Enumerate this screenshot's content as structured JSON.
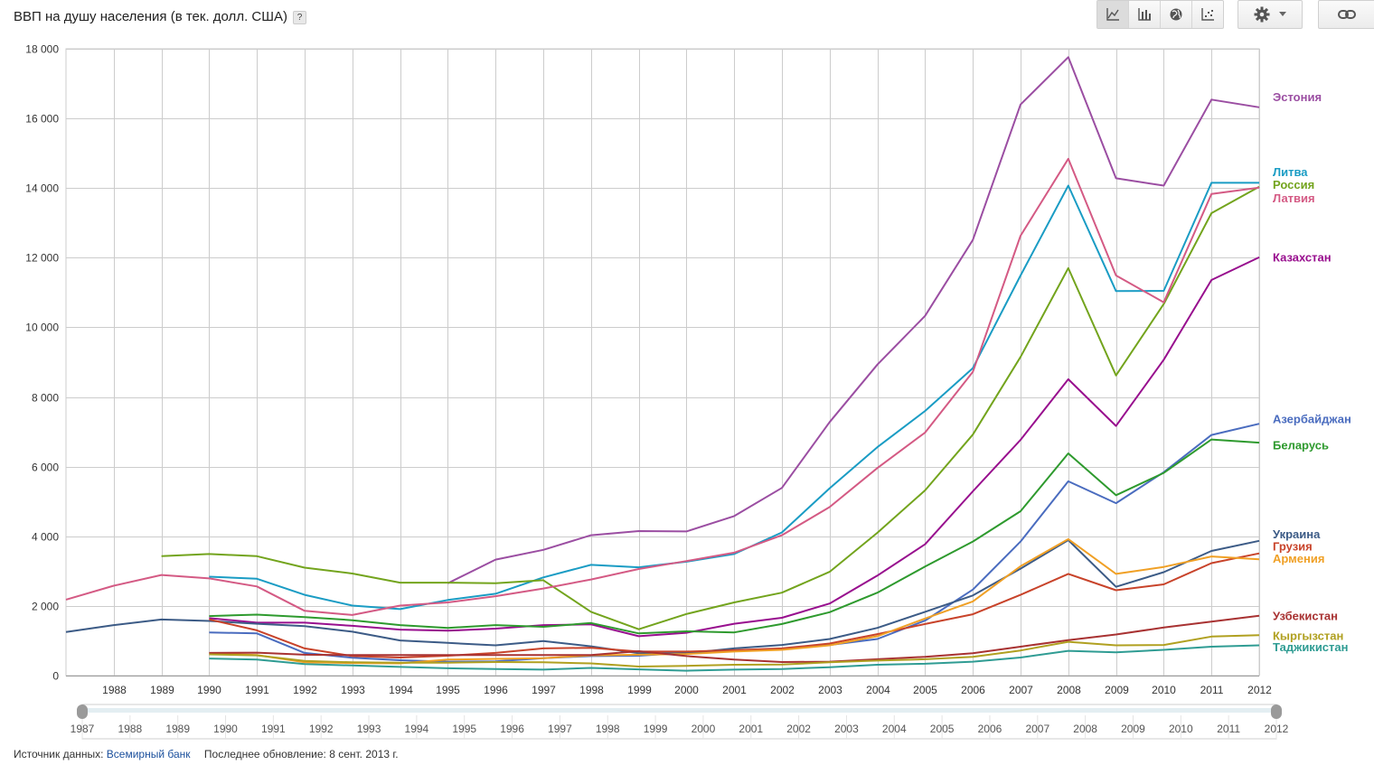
{
  "title": "ВВП на душу населения (в тек. долл. США)",
  "help_label": "?",
  "toolbar": {
    "chart_types": [
      {
        "icon": "line-chart-icon",
        "active": true
      },
      {
        "icon": "bar-chart-icon",
        "active": false
      },
      {
        "icon": "globe-map-icon",
        "active": false
      },
      {
        "icon": "scatter-chart-icon",
        "active": false
      }
    ],
    "settings_icon": "gear-icon",
    "dropdown_icon": "chevron-down-icon",
    "link_icon": "link-icon"
  },
  "footer": {
    "source_label": "Источник данных:",
    "source_link": "Всемирный банк",
    "updated": "Последнее обновление: 8 сент. 2013 г."
  },
  "chart_data": {
    "type": "line",
    "title": "",
    "xlabel": "",
    "ylabel": "",
    "xlim": [
      1987,
      2012
    ],
    "ylim": [
      0,
      18000
    ],
    "yticks": [
      0,
      2000,
      4000,
      6000,
      8000,
      10000,
      12000,
      14000,
      16000,
      18000
    ],
    "ytick_labels": [
      "0",
      "2 000",
      "4 000",
      "6 000",
      "8 000",
      "10 000",
      "12 000",
      "14 000",
      "16 000",
      "18 000"
    ],
    "xticks": [
      1988,
      1989,
      1990,
      1991,
      1992,
      1993,
      1994,
      1995,
      1996,
      1997,
      1998,
      1999,
      2000,
      2001,
      2002,
      2003,
      2004,
      2005,
      2006,
      2007,
      2008,
      2009,
      2010,
      2011,
      2012
    ],
    "range_slider": {
      "from": 1987,
      "to": 2012,
      "labels": [
        1987,
        1988,
        1989,
        1990,
        1991,
        1992,
        1993,
        1994,
        1995,
        1996,
        1997,
        1998,
        1999,
        2000,
        2001,
        2002,
        2003,
        2004,
        2005,
        2006,
        2007,
        2008,
        2009,
        2010,
        2011,
        2012
      ]
    },
    "grid": true,
    "legend": "right",
    "series": [
      {
        "name": "Эстония",
        "color": "#9b4ea2",
        "label_y": 16600,
        "start": 1995,
        "values": [
          2650,
          3330,
          3610,
          4030,
          4150,
          4140,
          4580,
          5390,
          7280,
          8930,
          10330,
          12510,
          16400,
          17760,
          14280,
          14070,
          16540,
          16320
        ]
      },
      {
        "name": "Литва",
        "color": "#1a9cc4",
        "label_y": 14450,
        "start": 1990,
        "values": [
          2840,
          2780,
          2320,
          2010,
          1910,
          2170,
          2350,
          2820,
          3180,
          3110,
          3270,
          3490,
          4110,
          5380,
          6560,
          7600,
          8830,
          11490,
          14070,
          11040,
          11050,
          14150,
          14150
        ]
      },
      {
        "name": "Россия",
        "color": "#73a41d",
        "label_y": 14080,
        "start": 1989,
        "values": [
          3430,
          3490,
          3430,
          3100,
          2930,
          2670,
          2670,
          2650,
          2740,
          1830,
          1330,
          1770,
          2100,
          2380,
          2980,
          4100,
          5320,
          6920,
          9150,
          11700,
          8620,
          10670,
          13280,
          14040
        ]
      },
      {
        "name": "Латвия",
        "color": "#d45a84",
        "label_y": 13700,
        "start": 1987,
        "values": [
          2180,
          2580,
          2890,
          2790,
          2560,
          1860,
          1740,
          2010,
          2100,
          2280,
          2500,
          2760,
          3060,
          3290,
          3530,
          4030,
          4840,
          5960,
          6980,
          8720,
          12630,
          14840,
          11490,
          10720,
          13830,
          14010
        ]
      },
      {
        "name": "Казахстан",
        "color": "#980f8e",
        "label_y": 12000,
        "start": 1990,
        "values": [
          1650,
          1520,
          1520,
          1430,
          1320,
          1290,
          1350,
          1450,
          1470,
          1130,
          1230,
          1490,
          1660,
          2070,
          2870,
          3770,
          5290,
          6770,
          8510,
          7170,
          9070,
          11360,
          12010
        ]
      },
      {
        "name": "Азербайджан",
        "color": "#4a6cbf",
        "label_y": 7350,
        "start": 1990,
        "values": [
          1240,
          1210,
          650,
          510,
          440,
          400,
          410,
          500,
          560,
          570,
          660,
          700,
          760,
          880,
          1050,
          1580,
          2470,
          3850,
          5580,
          4950,
          5840,
          6910,
          7230
        ]
      },
      {
        "name": "Беларусь",
        "color": "#2e9a2e",
        "label_y": 6600,
        "start": 1990,
        "values": [
          1710,
          1750,
          1680,
          1590,
          1450,
          1370,
          1450,
          1400,
          1510,
          1210,
          1270,
          1240,
          1480,
          1820,
          2380,
          3130,
          3850,
          4720,
          6380,
          5180,
          5820,
          6780,
          6690
        ]
      },
      {
        "name": "Украина",
        "color": "#3c5b86",
        "label_y": 4050,
        "start": 1987,
        "values": [
          1250,
          1450,
          1610,
          1570,
          1490,
          1420,
          1260,
          1010,
          940,
          870,
          990,
          840,
          640,
          640,
          780,
          880,
          1050,
          1370,
          1830,
          2300,
          3070,
          3890,
          2550,
          2970,
          3580,
          3870
        ]
      },
      {
        "name": "Грузия",
        "color": "#c8432a",
        "label_y": 3700,
        "start": 1990,
        "values": [
          1610,
          1300,
          780,
          560,
          520,
          570,
          650,
          780,
          800,
          690,
          690,
          730,
          780,
          920,
          1190,
          1480,
          1760,
          2320,
          2920,
          2450,
          2620,
          3230,
          3510
        ]
      },
      {
        "name": "Армения",
        "color": "#f0a025",
        "label_y": 3350,
        "start": 1990,
        "values": [
          640,
          590,
          380,
          360,
          350,
          460,
          480,
          500,
          580,
          600,
          620,
          690,
          740,
          870,
          1130,
          1640,
          2130,
          3140,
          3920,
          2920,
          3120,
          3420,
          3340
        ]
      },
      {
        "name": "Узбекистан",
        "color": "#a83232",
        "label_y": 1700,
        "start": 1990,
        "values": [
          650,
          660,
          600,
          590,
          590,
          590,
          590,
          590,
          590,
          700,
          560,
          460,
          390,
          400,
          470,
          540,
          640,
          830,
          1020,
          1180,
          1380,
          1550,
          1720
        ]
      },
      {
        "name": "Кыргызстан",
        "color": "#b0a020",
        "label_y": 1130,
        "start": 1990,
        "values": [
          610,
          580,
          420,
          380,
          370,
          370,
          390,
          380,
          350,
          260,
          280,
          310,
          320,
          380,
          430,
          470,
          540,
          720,
          970,
          870,
          880,
          1120,
          1160
        ]
      },
      {
        "name": "Таджикистан",
        "color": "#2f9c93",
        "label_y": 800,
        "start": 1990,
        "values": [
          490,
          460,
          330,
          290,
          250,
          210,
          190,
          170,
          220,
          180,
          140,
          170,
          190,
          240,
          310,
          340,
          400,
          520,
          710,
          670,
          740,
          830,
          870
        ]
      }
    ]
  }
}
